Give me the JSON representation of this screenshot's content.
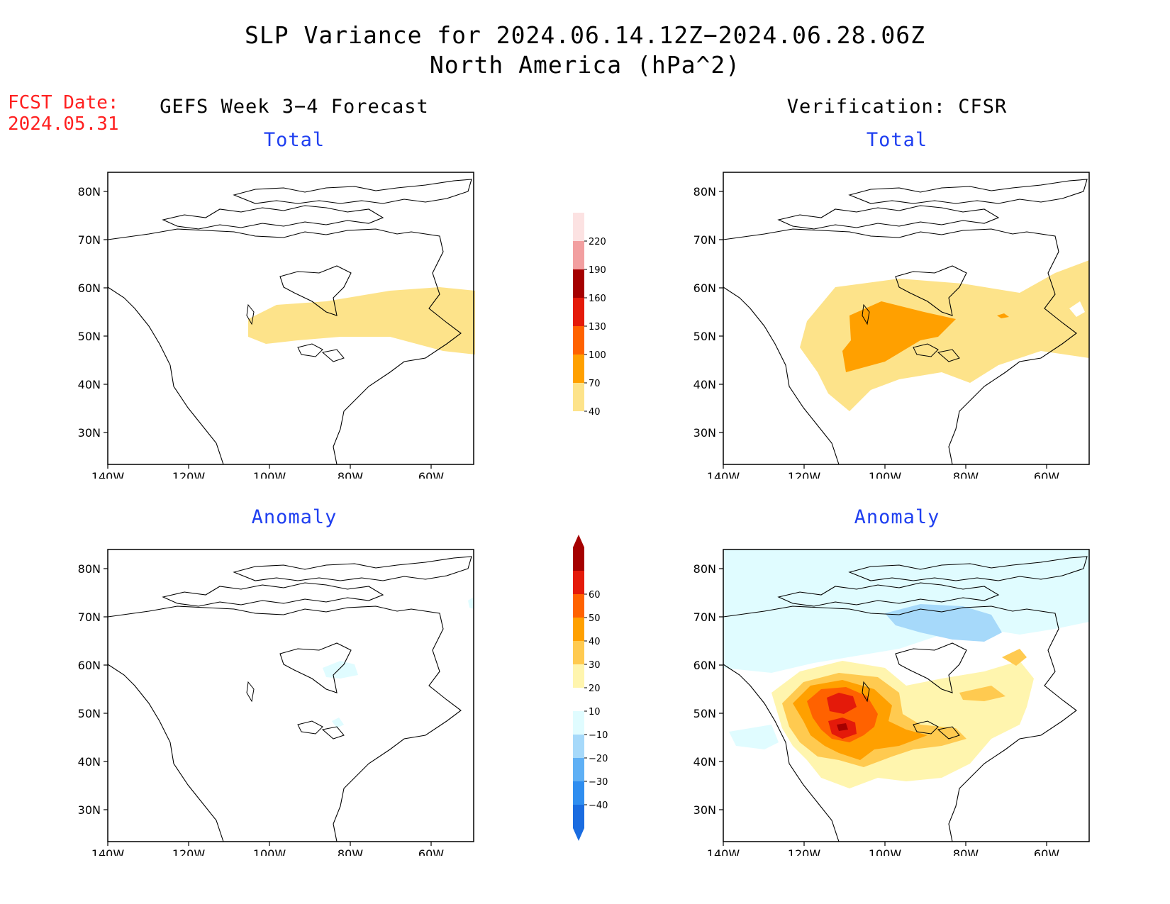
{
  "title_line1": "SLP Variance for 2024.06.14.12Z−2024.06.28.06Z",
  "title_line2": "North America (hPa^2)",
  "fcst_date_label": "FCST Date:",
  "fcst_date_value": "2024.05.31",
  "columns": {
    "left": "GEFS Week 3−4 Forecast",
    "right": "Verification: CFSR"
  },
  "panel_titles": {
    "left_top": "Total",
    "right_top": "Total",
    "left_bottom": "Anomaly",
    "right_bottom": "Anomaly"
  },
  "axes": {
    "lon_ticks": [
      "140W",
      "120W",
      "100W",
      "80W",
      "60W"
    ],
    "lat_ticks": [
      "80N",
      "70N",
      "60N",
      "50N",
      "40N",
      "30N"
    ]
  },
  "colorbars": {
    "total": {
      "labels": [
        "40",
        "70",
        "100",
        "130",
        "160",
        "190",
        "220"
      ],
      "colors": [
        "#fde38a",
        "#ffa000",
        "#ff6200",
        "#e41a0a",
        "#a50000",
        "#f29fa0",
        "#fce2e2"
      ]
    },
    "anomaly": {
      "labels": [
        "−40",
        "−30",
        "−20",
        "−10",
        "10",
        "20",
        "30",
        "40",
        "50",
        "60"
      ],
      "colors": [
        "#1a6ce0",
        "#2f8ef0",
        "#5fb0f5",
        "#a6d9fa",
        "#e0fcff",
        "#ffffff",
        "#fff5ae",
        "#ffca50",
        "#ffa000",
        "#ff6200",
        "#e41a0a",
        "#a50000"
      ]
    }
  }
}
